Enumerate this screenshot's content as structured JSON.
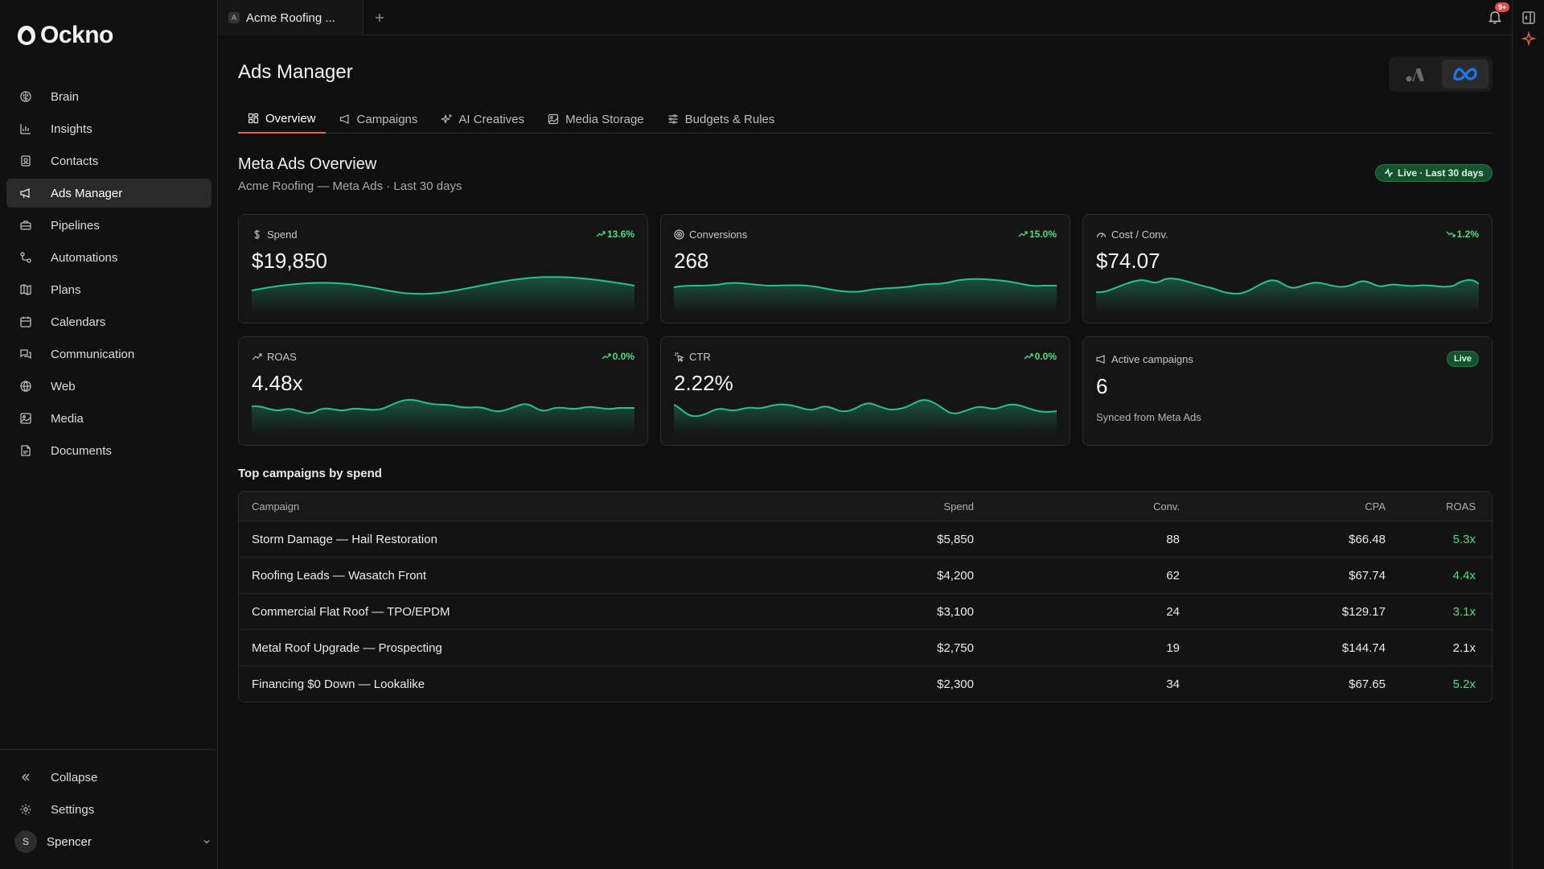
{
  "app": {
    "name": "Ockno"
  },
  "sidebar": {
    "items": [
      {
        "label": "Brain",
        "icon": "brain-icon"
      },
      {
        "label": "Insights",
        "icon": "bar-chart-icon"
      },
      {
        "label": "Contacts",
        "icon": "contact-card-icon"
      },
      {
        "label": "Ads Manager",
        "icon": "megaphone-icon",
        "active": true
      },
      {
        "label": "Pipelines",
        "icon": "briefcase-icon"
      },
      {
        "label": "Automations",
        "icon": "workflow-icon"
      },
      {
        "label": "Plans",
        "icon": "map-icon"
      },
      {
        "label": "Calendars",
        "icon": "calendar-icon"
      },
      {
        "label": "Communication",
        "icon": "messages-icon"
      },
      {
        "label": "Web",
        "icon": "globe-icon"
      },
      {
        "label": "Media",
        "icon": "image-icon"
      },
      {
        "label": "Documents",
        "icon": "document-icon"
      }
    ],
    "collapse_label": "Collapse",
    "settings_label": "Settings",
    "user": {
      "initial": "S",
      "name": "Spencer"
    }
  },
  "topbar": {
    "tab_title": "Acme Roofing ...",
    "tab_favicon": "A",
    "notification_count": "9+"
  },
  "header": {
    "title": "Ads Manager",
    "tabs": [
      {
        "label": "Overview",
        "icon": "grid-icon",
        "active": true
      },
      {
        "label": "Campaigns",
        "icon": "megaphone-icon"
      },
      {
        "label": "AI Creatives",
        "icon": "sparkles-icon"
      },
      {
        "label": "Media Storage",
        "icon": "image-icon"
      },
      {
        "label": "Budgets & Rules",
        "icon": "sliders-icon"
      }
    ]
  },
  "overview": {
    "title": "Meta Ads Overview",
    "subtitle": "Acme Roofing — Meta Ads · Last 30 days",
    "live_label": "Live · Last 30 days"
  },
  "metrics": [
    {
      "label": "Spend",
      "icon": "dollar-icon",
      "value": "$19,850",
      "delta": "13.6%",
      "trend": "up"
    },
    {
      "label": "Conversions",
      "icon": "target-icon",
      "value": "268",
      "delta": "15.0%",
      "trend": "up"
    },
    {
      "label": "Cost / Conv.",
      "icon": "gauge-icon",
      "value": "$74.07",
      "delta": "1.2%",
      "trend": "down"
    },
    {
      "label": "ROAS",
      "icon": "trend-up-icon",
      "value": "4.48x",
      "delta": "0.0%",
      "trend": "up"
    },
    {
      "label": "CTR",
      "icon": "click-icon",
      "value": "2.22%",
      "delta": "0.0%",
      "trend": "up"
    }
  ],
  "active_campaigns": {
    "label": "Active campaigns",
    "value": "6",
    "sub": "Synced from Meta Ads",
    "badge": "Live"
  },
  "campaigns_table": {
    "title": "Top campaigns by spend",
    "headers": {
      "campaign": "Campaign",
      "spend": "Spend",
      "conv": "Conv.",
      "cpa": "CPA",
      "roas": "ROAS"
    },
    "rows": [
      {
        "campaign": "Storm Damage — Hail Restoration",
        "spend": "$5,850",
        "conv": "88",
        "cpa": "$66.48",
        "roas": "5.3x",
        "roas_highlight": true
      },
      {
        "campaign": "Roofing Leads — Wasatch Front",
        "spend": "$4,200",
        "conv": "62",
        "cpa": "$67.74",
        "roas": "4.4x",
        "roas_highlight": true
      },
      {
        "campaign": "Commercial Flat Roof — TPO/EPDM",
        "spend": "$3,100",
        "conv": "24",
        "cpa": "$129.17",
        "roas": "3.1x",
        "roas_highlight": true
      },
      {
        "campaign": "Metal Roof Upgrade — Prospecting",
        "spend": "$2,750",
        "conv": "19",
        "cpa": "$144.74",
        "roas": "2.1x",
        "roas_highlight": false
      },
      {
        "campaign": "Financing $0 Down — Lookalike",
        "spend": "$2,300",
        "conv": "34",
        "cpa": "$67.65",
        "roas": "5.2x",
        "roas_highlight": true
      }
    ]
  },
  "colors": {
    "accent": "#e06a3b",
    "positive": "#4ade80",
    "spark": "#22c38e",
    "meta_blue": "#1877f2"
  }
}
